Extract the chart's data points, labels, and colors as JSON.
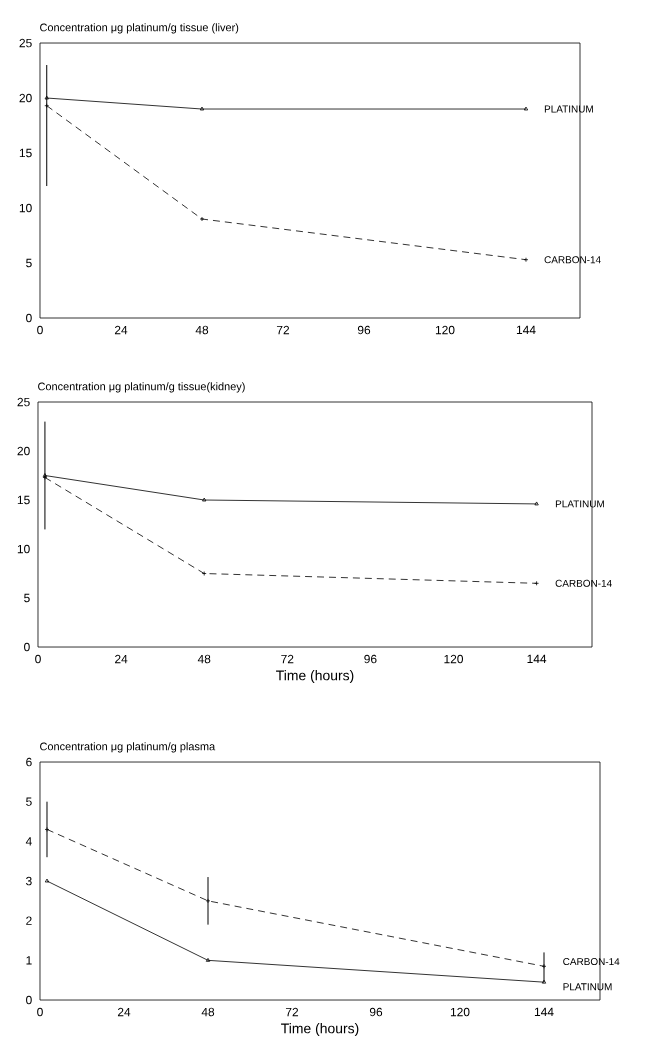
{
  "chart_data": [
    {
      "type": "line",
      "title": "Concentration μg platinum/g tissue (liver)",
      "x": [
        2,
        48,
        144
      ],
      "xlim": [
        0,
        160
      ],
      "xticks": [
        0,
        24,
        48,
        72,
        96,
        120,
        144
      ],
      "ylim": [
        0,
        25
      ],
      "yticks": [
        0,
        5,
        10,
        15,
        20,
        25
      ],
      "grid": false,
      "series": [
        {
          "name": "PLATINUM",
          "color": "#000000",
          "values": [
            20,
            19,
            19
          ],
          "marker": "triangle",
          "line_style": "solid"
        },
        {
          "name": "CARBON-14",
          "color": "#000000",
          "values": [
            19.3,
            9,
            5.3
          ],
          "errors": [
            [
              12,
              23
            ],
            null,
            null
          ],
          "marker": "cross",
          "line_style": "dashed"
        }
      ]
    },
    {
      "type": "line",
      "title": "Concentration μg platinum/g tissue(kidney)",
      "xlabel": "Time (hours)",
      "x": [
        2,
        48,
        144
      ],
      "xlim": [
        0,
        160
      ],
      "xticks": [
        0,
        24,
        48,
        72,
        96,
        120,
        144
      ],
      "ylim": [
        0,
        25
      ],
      "yticks": [
        0,
        5,
        10,
        15,
        20,
        25
      ],
      "grid": false,
      "series": [
        {
          "name": "PLATINUM",
          "color": "#000000",
          "values": [
            17.5,
            15,
            14.6
          ],
          "marker": "triangle",
          "line_style": "solid"
        },
        {
          "name": "CARBON-14",
          "color": "#000000",
          "values": [
            17.3,
            7.5,
            6.5
          ],
          "errors": [
            [
              12,
              23
            ],
            null,
            null
          ],
          "marker": "cross",
          "line_style": "dashed"
        }
      ]
    },
    {
      "type": "line",
      "title": "Concentration μg platinum/g plasma",
      "xlabel": "Time (hours)",
      "x": [
        2,
        48,
        144
      ],
      "xlim": [
        0,
        160
      ],
      "xticks": [
        0,
        24,
        48,
        72,
        96,
        120,
        144
      ],
      "ylim": [
        0,
        6
      ],
      "yticks": [
        0,
        1,
        2,
        3,
        4,
        5,
        6
      ],
      "grid": false,
      "series": [
        {
          "name": "CARBON-14",
          "color": "#000000",
          "values": [
            4.3,
            2.5,
            0.85
          ],
          "errors": [
            [
              3.6,
              5.0
            ],
            [
              1.9,
              3.1
            ],
            [
              0.45,
              1.2
            ]
          ],
          "marker": "cross",
          "line_style": "dashed"
        },
        {
          "name": "PLATINUM",
          "color": "#000000",
          "values": [
            3.0,
            1.0,
            0.45
          ],
          "marker": "triangle",
          "line_style": "solid"
        }
      ]
    }
  ]
}
